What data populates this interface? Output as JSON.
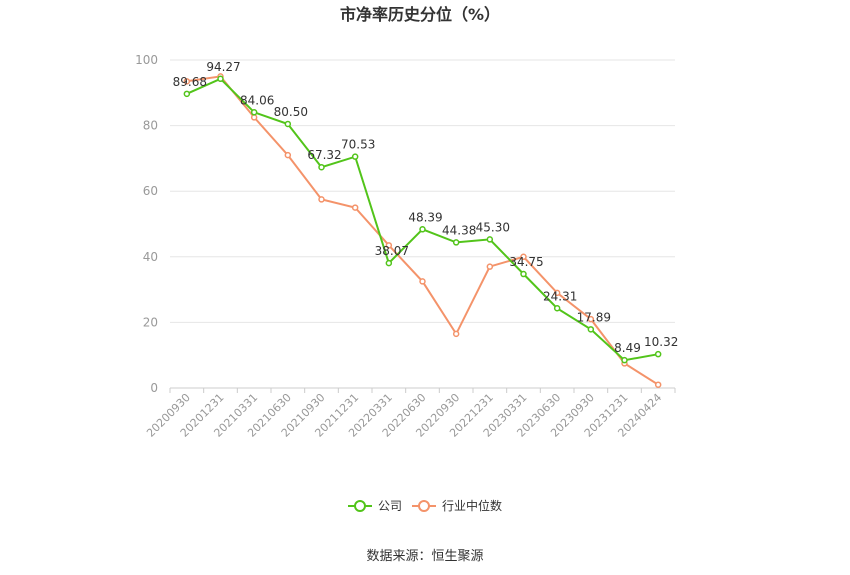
{
  "chart_data": {
    "type": "line",
    "title": "市净率历史分位（%）",
    "source": "数据来源：恒生聚源",
    "x": [
      "20200930",
      "20201231",
      "20210331",
      "20210630",
      "20210930",
      "20211231",
      "20220331",
      "20220630",
      "20220930",
      "20221231",
      "20230331",
      "20230630",
      "20230930",
      "20231231",
      "20240424"
    ],
    "ylim": [
      0,
      100
    ],
    "yticks": [
      0,
      20,
      40,
      60,
      80,
      100
    ],
    "grid": true,
    "legend_position": "bottom",
    "series": [
      {
        "name": "公司",
        "color": "#52c41a",
        "values": [
          89.68,
          94.27,
          84.06,
          80.5,
          67.32,
          70.53,
          38.07,
          48.39,
          44.38,
          45.3,
          34.75,
          24.31,
          17.89,
          8.49,
          10.32
        ],
        "labels": [
          "89.68",
          "94.27",
          "84.06",
          "80.50",
          "67.32",
          "70.53",
          "38.07",
          "48.39",
          "44.38",
          "45.30",
          "34.75",
          "24.31",
          "17.89",
          "8.49",
          "10.32"
        ]
      },
      {
        "name": "行业中位数",
        "color": "#f4936a",
        "values": [
          93.5,
          95.0,
          82.5,
          71.0,
          57.5,
          55.0,
          43.5,
          32.5,
          16.5,
          37.0,
          40.0,
          29.0,
          21.0,
          7.5,
          1.0
        ]
      }
    ]
  }
}
